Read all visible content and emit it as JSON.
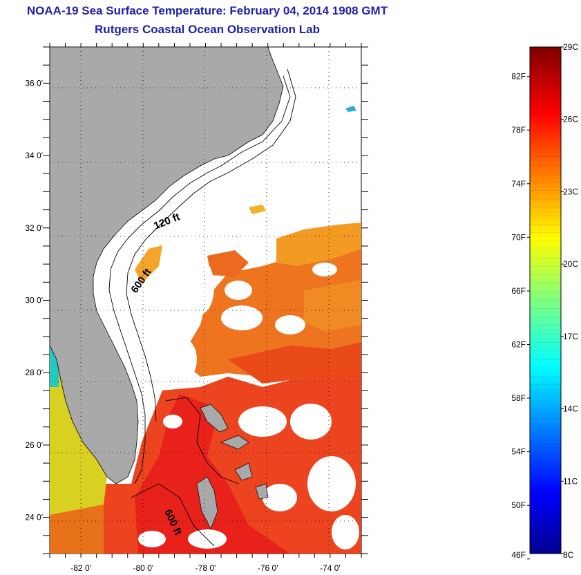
{
  "title": {
    "line1": "NOAA-19 Sea Surface Temperature:  February 04, 2014 1908 GMT",
    "line2": "Rutgers Coastal Ocean Observation Lab"
  },
  "map": {
    "lon_range": [
      -83,
      -73
    ],
    "lat_range": [
      23,
      37
    ],
    "lon_ticks": [
      {
        "value": -82,
        "label": "-82 0'"
      },
      {
        "value": -80,
        "label": "-80 0'"
      },
      {
        "value": -78,
        "label": "-78 0'"
      },
      {
        "value": -76,
        "label": "-76 0'"
      },
      {
        "value": -74,
        "label": "-74 0'"
      }
    ],
    "lat_ticks": [
      {
        "value": 36,
        "label": "36 0'"
      },
      {
        "value": 34,
        "label": "34 0'"
      },
      {
        "value": 32,
        "label": "32 0'"
      },
      {
        "value": 30,
        "label": "30 0'"
      },
      {
        "value": 28,
        "label": "28 0'"
      },
      {
        "value": 26,
        "label": "26 0'"
      },
      {
        "value": 24,
        "label": "24 0'"
      }
    ],
    "grid": "dotted",
    "contour_labels": [
      "120 ft",
      "600 ft",
      "600 ft"
    ],
    "colors": {
      "land": "#a9a9a9",
      "ocean_nodata": "#ffffff",
      "contour": "#000000"
    }
  },
  "colorbar": {
    "min_c": 8,
    "max_c": 29,
    "fahrenheit_labels": [
      "82F",
      "78F",
      "74F",
      "70F",
      "66F",
      "62F",
      "58F",
      "54F",
      "50F",
      "46F"
    ],
    "celsius_labels": [
      "29C",
      "26C",
      "23C",
      "20C",
      "17C",
      "14C",
      "11C",
      "8C"
    ],
    "fahrenheit_values": [
      82,
      78,
      74,
      70,
      66,
      62,
      58,
      54,
      50,
      46
    ],
    "celsius_values": [
      29,
      26,
      23,
      20,
      17,
      14,
      11,
      8
    ],
    "colormap": "jet"
  }
}
